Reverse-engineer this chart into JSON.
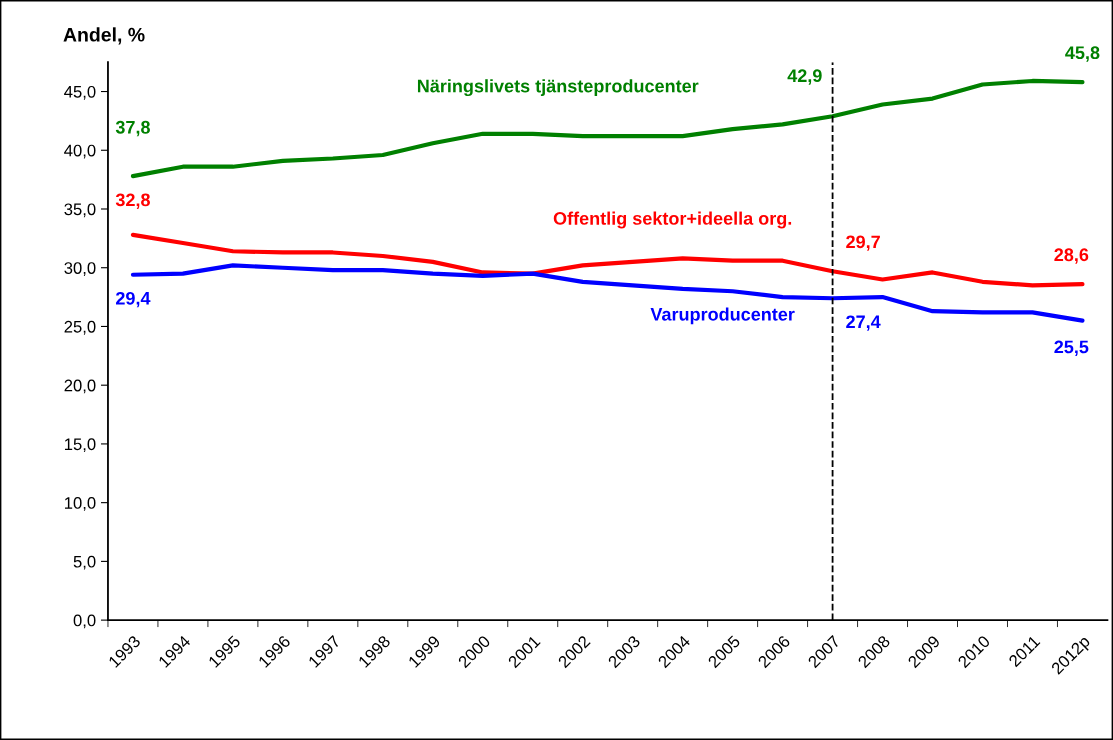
{
  "chart_data": {
    "type": "line",
    "ylabel": "Andel, %",
    "categories": [
      "1993",
      "1994",
      "1995",
      "1996",
      "1997",
      "1998",
      "1999",
      "2000",
      "2001",
      "2002",
      "2003",
      "2004",
      "2005",
      "2006",
      "2007",
      "2008",
      "2009",
      "2010",
      "2011",
      "2012p"
    ],
    "series": [
      {
        "name": "Näringslivets tjänsteproducenter",
        "color": "#008000",
        "values": [
          37.8,
          38.6,
          38.6,
          39.1,
          39.3,
          39.6,
          40.6,
          41.4,
          41.4,
          41.2,
          41.2,
          41.2,
          41.8,
          42.2,
          42.9,
          43.9,
          44.4,
          45.6,
          45.9,
          45.8
        ],
        "value_labels": [
          "37,8",
          null,
          null,
          null,
          null,
          null,
          null,
          null,
          null,
          null,
          null,
          null,
          null,
          null,
          "42,9",
          null,
          null,
          null,
          null,
          "45,8"
        ]
      },
      {
        "name": "Offentlig sektor+ideella org.",
        "color": "#ff0000",
        "values": [
          32.8,
          32.1,
          31.4,
          31.3,
          31.3,
          31.0,
          30.5,
          29.6,
          29.5,
          30.2,
          30.5,
          30.8,
          30.6,
          30.6,
          29.7,
          29.0,
          29.6,
          28.8,
          28.5,
          28.6
        ],
        "value_labels": [
          "32,8",
          null,
          null,
          null,
          null,
          null,
          null,
          null,
          null,
          null,
          null,
          null,
          null,
          null,
          "29,7",
          null,
          null,
          null,
          null,
          "28,6"
        ]
      },
      {
        "name": "Varuproducenter",
        "color": "#0000ff",
        "values": [
          29.4,
          29.5,
          30.2,
          30.0,
          29.8,
          29.8,
          29.5,
          29.3,
          29.5,
          28.8,
          28.5,
          28.2,
          28.0,
          27.5,
          27.4,
          27.5,
          26.3,
          26.2,
          26.2,
          25.5
        ],
        "value_labels": [
          "29,4",
          null,
          null,
          null,
          null,
          null,
          null,
          null,
          null,
          null,
          null,
          null,
          null,
          null,
          "27,4",
          null,
          null,
          null,
          null,
          "25,5"
        ]
      }
    ],
    "ylim": [
      0,
      47.5
    ],
    "yticks": [
      {
        "value": 0,
        "label": "0,0"
      },
      {
        "value": 5,
        "label": "5,0"
      },
      {
        "value": 10,
        "label": "10,0"
      },
      {
        "value": 15,
        "label": "15,0"
      },
      {
        "value": 20,
        "label": "20,0"
      },
      {
        "value": 25,
        "label": "25,0"
      },
      {
        "value": 30,
        "label": "30,0"
      },
      {
        "value": 35,
        "label": "35,0"
      },
      {
        "value": 40,
        "label": "40,0"
      },
      {
        "value": 45,
        "label": "45,0"
      }
    ],
    "ref_lines": [
      {
        "axis": "x",
        "value": "2007",
        "color": "#000000",
        "line_style": "dashed"
      }
    ],
    "grid": false,
    "legend": false,
    "marker": "none",
    "line_style": "solid"
  }
}
